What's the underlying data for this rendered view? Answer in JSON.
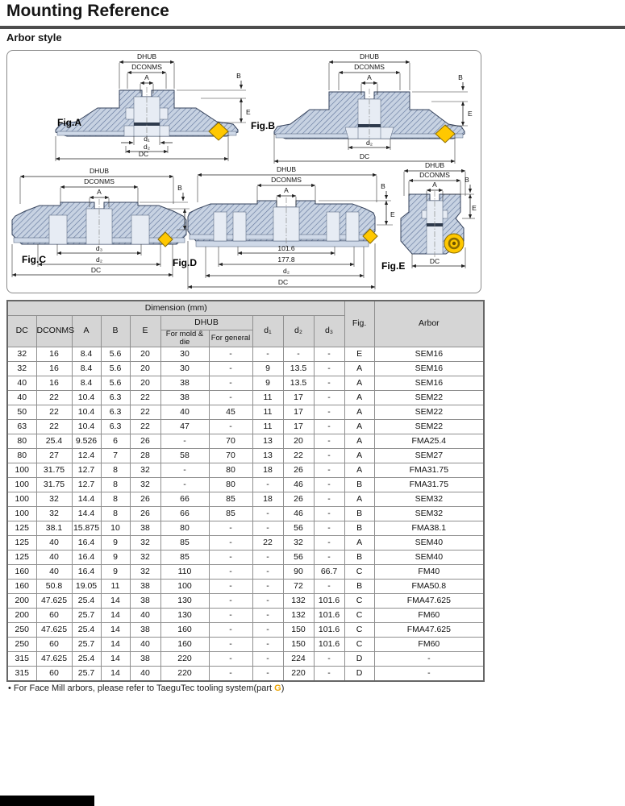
{
  "page": {
    "title": "Mounting Reference",
    "subtitle": "Arbor style"
  },
  "diagram": {
    "figures": {
      "figA": {
        "label": "Fig.A",
        "dims": {
          "dhub": "DHUB",
          "dconms": "DCONMS",
          "a": "A",
          "b": "B",
          "e": "E",
          "d1": "d₁",
          "d2": "d₂",
          "dc": "DC"
        }
      },
      "figB": {
        "label": "Fig.B",
        "dims": {
          "dhub": "DHUB",
          "dconms": "DCONMS",
          "a": "A",
          "b": "B",
          "e": "E",
          "d2": "d₂",
          "dc": "DC"
        }
      },
      "figC": {
        "label": "Fig.C",
        "dims": {
          "dhub": "DHUB",
          "dconms": "DCONMS",
          "a": "A",
          "b": "B",
          "e": "E",
          "d3": "d₃",
          "d2": "d₂",
          "dc": "DC"
        }
      },
      "figD": {
        "label": "Fig.D",
        "dims": {
          "dhub": "DHUB",
          "dconms": "DCONMS",
          "a": "A",
          "b": "B",
          "e": "E",
          "v1": "101.6",
          "v2": "177.8",
          "d2": "d₂",
          "dc": "DC"
        }
      },
      "figE": {
        "label": "Fig.E",
        "dims": {
          "dhub": "DHUB",
          "dconms": "DCONMS",
          "a": "A",
          "b": "B",
          "e": "E",
          "dc": "DC"
        }
      }
    },
    "colors": {
      "body": "#c7d2e2",
      "hatch": "#60749a",
      "insert": "#ffc800"
    }
  },
  "table": {
    "group_header": "Dimension (mm)",
    "columns": {
      "dc": "DC",
      "dconms": "DCONMS",
      "a": "A",
      "b": "B",
      "e": "E",
      "dhub": "DHUB",
      "mold": "For mold & die",
      "general": "For general",
      "d1": "d₁",
      "d2": "d₂",
      "d3": "d₃",
      "fig": "Fig.",
      "arbor": "Arbor"
    },
    "rows": [
      [
        "32",
        "16",
        "8.4",
        "5.6",
        "20",
        "30",
        "-",
        "-",
        "-",
        "-",
        "E",
        "SEM16"
      ],
      [
        "32",
        "16",
        "8.4",
        "5.6",
        "20",
        "30",
        "-",
        "9",
        "13.5",
        "-",
        "A",
        "SEM16"
      ],
      [
        "40",
        "16",
        "8.4",
        "5.6",
        "20",
        "38",
        "-",
        "9",
        "13.5",
        "-",
        "A",
        "SEM16"
      ],
      [
        "40",
        "22",
        "10.4",
        "6.3",
        "22",
        "38",
        "-",
        "11",
        "17",
        "-",
        "A",
        "SEM22"
      ],
      [
        "50",
        "22",
        "10.4",
        "6.3",
        "22",
        "40",
        "45",
        "11",
        "17",
        "-",
        "A",
        "SEM22"
      ],
      [
        "63",
        "22",
        "10.4",
        "6.3",
        "22",
        "47",
        "-",
        "11",
        "17",
        "-",
        "A",
        "SEM22"
      ],
      [
        "80",
        "25.4",
        "9.526",
        "6",
        "26",
        "-",
        "70",
        "13",
        "20",
        "-",
        "A",
        "FMA25.4"
      ],
      [
        "80",
        "27",
        "12.4",
        "7",
        "28",
        "58",
        "70",
        "13",
        "22",
        "-",
        "A",
        "SEM27"
      ],
      [
        "100",
        "31.75",
        "12.7",
        "8",
        "32",
        "-",
        "80",
        "18",
        "26",
        "-",
        "A",
        "FMA31.75"
      ],
      [
        "100",
        "31.75",
        "12.7",
        "8",
        "32",
        "-",
        "80",
        "-",
        "46",
        "-",
        "B",
        "FMA31.75"
      ],
      [
        "100",
        "32",
        "14.4",
        "8",
        "26",
        "66",
        "85",
        "18",
        "26",
        "-",
        "A",
        "SEM32"
      ],
      [
        "100",
        "32",
        "14.4",
        "8",
        "26",
        "66",
        "85",
        "-",
        "46",
        "-",
        "B",
        "SEM32"
      ],
      [
        "125",
        "38.1",
        "15.875",
        "10",
        "38",
        "80",
        "-",
        "-",
        "56",
        "-",
        "B",
        "FMA38.1"
      ],
      [
        "125",
        "40",
        "16.4",
        "9",
        "32",
        "85",
        "-",
        "22",
        "32",
        "-",
        "A",
        "SEM40"
      ],
      [
        "125",
        "40",
        "16.4",
        "9",
        "32",
        "85",
        "-",
        "-",
        "56",
        "-",
        "B",
        "SEM40"
      ],
      [
        "160",
        "40",
        "16.4",
        "9",
        "32",
        "110",
        "-",
        "-",
        "90",
        "66.7",
        "C",
        "FM40"
      ],
      [
        "160",
        "50.8",
        "19.05",
        "11",
        "38",
        "100",
        "-",
        "-",
        "72",
        "-",
        "B",
        "FMA50.8"
      ],
      [
        "200",
        "47.625",
        "25.4",
        "14",
        "38",
        "130",
        "-",
        "-",
        "132",
        "101.6",
        "C",
        "FMA47.625"
      ],
      [
        "200",
        "60",
        "25.7",
        "14",
        "40",
        "130",
        "-",
        "-",
        "132",
        "101.6",
        "C",
        "FM60"
      ],
      [
        "250",
        "47.625",
        "25.4",
        "14",
        "38",
        "160",
        "-",
        "-",
        "150",
        "101.6",
        "C",
        "FMA47.625"
      ],
      [
        "250",
        "60",
        "25.7",
        "14",
        "40",
        "160",
        "-",
        "-",
        "150",
        "101.6",
        "C",
        "FM60"
      ],
      [
        "315",
        "47.625",
        "25.4",
        "14",
        "38",
        "220",
        "-",
        "-",
        "224",
        "-",
        "D",
        "-"
      ],
      [
        "315",
        "60",
        "25.7",
        "14",
        "40",
        "220",
        "-",
        "-",
        "220",
        "-",
        "D",
        "-"
      ]
    ]
  },
  "footnote": {
    "bullet": "•",
    "prefix": "For Face Mill arbors, please refer to TaeguTec tooling system(part",
    "highlight": "G",
    "suffix": ")"
  }
}
